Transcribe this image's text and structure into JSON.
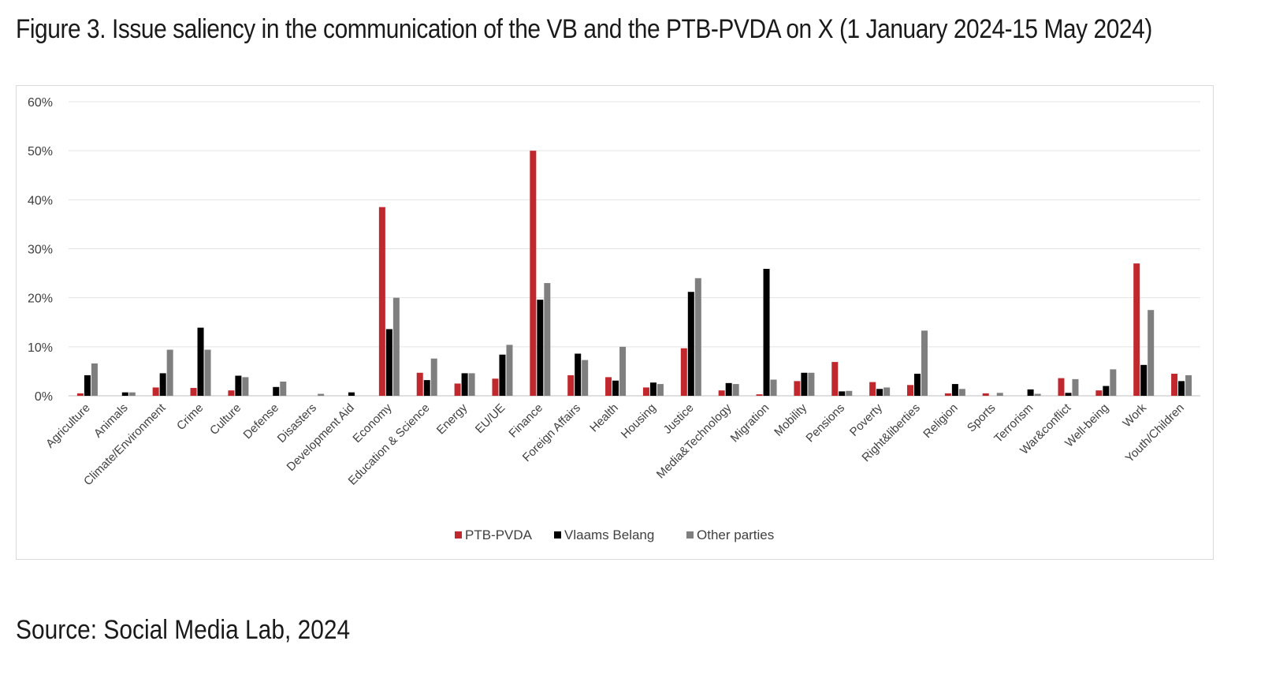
{
  "figure": {
    "title": "Figure 3. Issue saliency in the communication of the VB and the PTB-PVDA on X (1 January 2024-15 May 2024)",
    "source": "Source: Social Media Lab, 2024"
  },
  "chart_data": {
    "type": "bar",
    "title": "",
    "xlabel": "",
    "ylabel": "",
    "ylim": [
      0,
      60
    ],
    "y_ticks": [
      "0%",
      "10%",
      "20%",
      "30%",
      "40%",
      "50%",
      "60%"
    ],
    "grid": true,
    "legend_position": "bottom",
    "categories": [
      "Agriculture",
      "Animals",
      "Climate/Environment",
      "Crime",
      "Culture",
      "Defense",
      "Disasters",
      "Development Aid",
      "Economy",
      "Education & Science",
      "Energy",
      "EU/UE",
      "Finance",
      "Foreign Affairs",
      "Health",
      "Housing",
      "Justice",
      "Media&Technology",
      "Migration",
      "Mobility",
      "Pensions",
      "Poverty",
      "Right&liberties",
      "Religion",
      "Sports",
      "Terrorism",
      "War&conflict",
      "Well-being",
      "Work",
      "Youth/Children"
    ],
    "series": [
      {
        "name": "PTB-PVDA",
        "color": "#c0282d",
        "values": [
          0.5,
          0,
          1.7,
          1.6,
          1.1,
          0,
          0,
          0,
          38.5,
          4.7,
          2.5,
          3.5,
          50,
          4.2,
          3.8,
          1.7,
          9.7,
          1.1,
          0.3,
          3.0,
          6.9,
          2.8,
          2.2,
          0.5,
          0.5,
          0,
          3.6,
          1.1,
          27,
          4.5
        ]
      },
      {
        "name": "Vlaams Belang",
        "color": "#000000",
        "values": [
          4.2,
          0.7,
          4.6,
          13.9,
          4.1,
          1.8,
          0,
          0.7,
          13.6,
          3.2,
          4.6,
          8.4,
          19.6,
          8.6,
          3.1,
          2.7,
          21.2,
          2.6,
          25.9,
          4.7,
          0.9,
          1.4,
          4.5,
          2.4,
          0,
          1.3,
          0.6,
          2.0,
          6.3,
          3.0
        ]
      },
      {
        "name": "Other parties",
        "color": "#7f7f7f",
        "values": [
          6.6,
          0.7,
          9.4,
          9.4,
          3.8,
          2.9,
          0.4,
          0,
          20,
          7.6,
          4.6,
          10.4,
          23,
          7.3,
          10,
          2.4,
          24,
          2.4,
          3.3,
          4.7,
          1.0,
          1.7,
          13.3,
          1.4,
          0.6,
          0.4,
          3.4,
          5.4,
          17.5,
          4.2
        ]
      }
    ]
  }
}
